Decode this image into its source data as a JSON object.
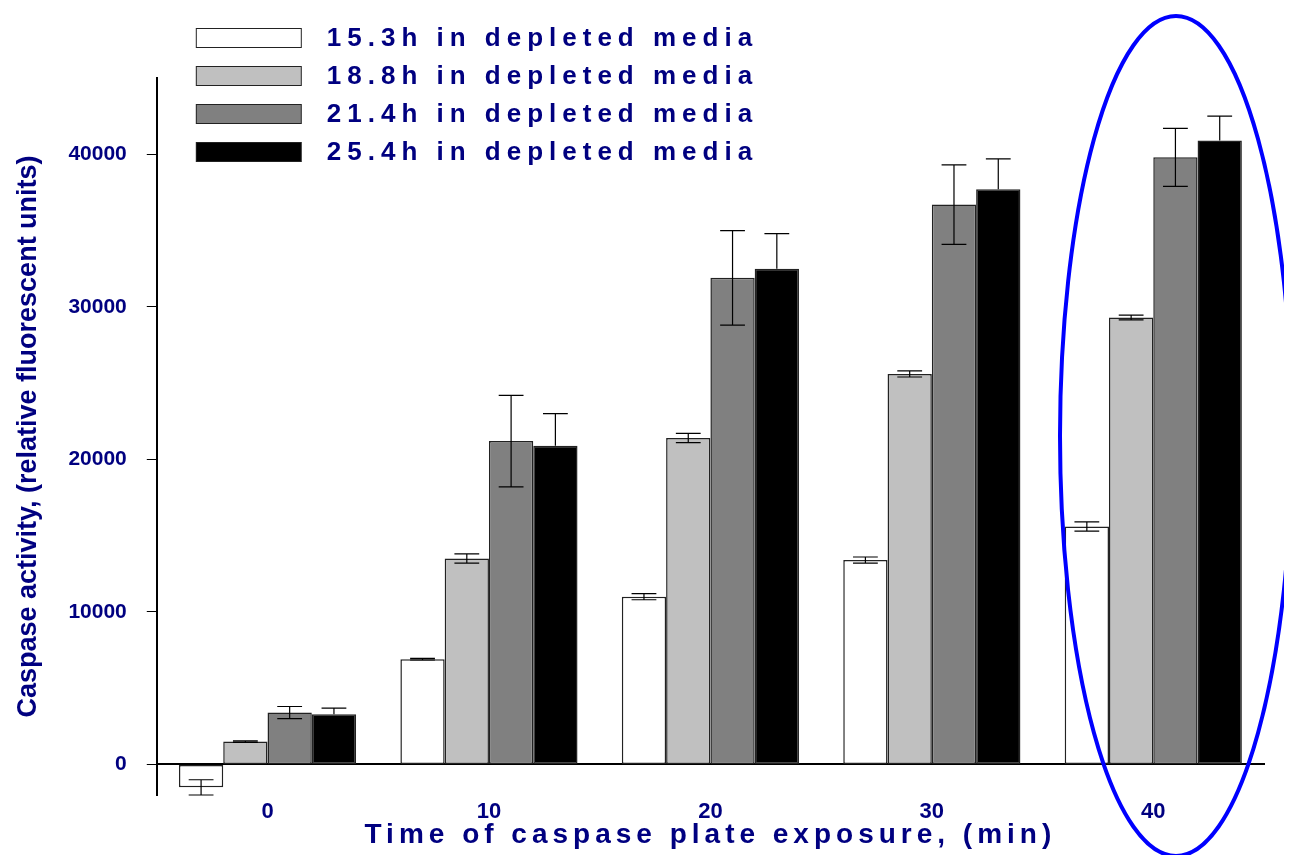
{
  "chart_data": {
    "type": "bar",
    "xlabel": "Time of caspase plate exposure, (min)",
    "ylabel": "Caspase activity, (relative fluorescent units)",
    "categories": [
      "0",
      "10",
      "20",
      "30",
      "40"
    ],
    "series": [
      {
        "name": "15.3h in depleted media",
        "color": "#ffffff",
        "values": [
          -1500,
          6900,
          11000,
          13400,
          15600
        ],
        "errors": [
          500,
          50,
          200,
          200,
          300
        ]
      },
      {
        "name": "18.8h in depleted media",
        "color": "#c0c0c0",
        "values": [
          1500,
          13500,
          21400,
          25600,
          29300
        ],
        "errors": [
          50,
          300,
          300,
          200,
          150
        ]
      },
      {
        "name": "21.4h in depleted media",
        "color": "#808080",
        "values": [
          3400,
          21200,
          31900,
          36700,
          39800
        ],
        "errors": [
          400,
          3000,
          3100,
          2600,
          1900
        ]
      },
      {
        "name": "25.4h in depleted media",
        "color": "#000000",
        "values": [
          3300,
          20900,
          32500,
          37700,
          40900
        ],
        "errors": [
          400,
          2100,
          2300,
          2000,
          1600
        ]
      }
    ],
    "ylim": [
      -2000,
      45000
    ],
    "yticks": [
      0,
      10000,
      20000,
      30000,
      40000
    ],
    "grid": false,
    "legend": "top left"
  }
}
